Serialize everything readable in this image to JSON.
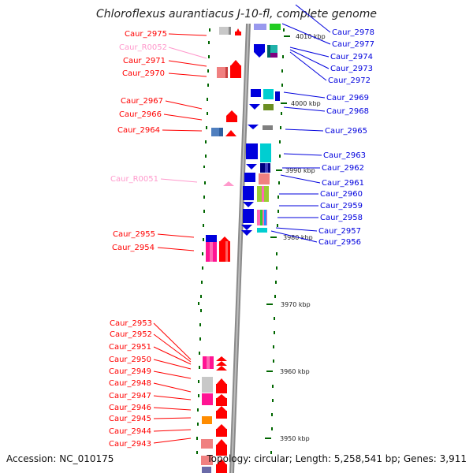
{
  "header": {
    "title": "Chloroflexus aurantiacus J-10-fl, complete genome"
  },
  "footer": {
    "accession": "Accession: NC_010175",
    "topology": "Topology: circular; Length: 5,258,541 bp; Genes: 3,911"
  },
  "ruler": {
    "unit": "kbp",
    "ticks": [
      {
        "label": "4010 kbp",
        "kbp": 4010
      },
      {
        "label": "4000 kbp",
        "kbp": 4000
      },
      {
        "label": "3990 kbp",
        "kbp": 3990
      },
      {
        "label": "3980 kbp",
        "kbp": 3980
      },
      {
        "label": "3970 kbp",
        "kbp": 3970
      },
      {
        "label": "3960 kbp",
        "kbp": 3960
      },
      {
        "label": "3950 kbp",
        "kbp": 3950
      }
    ]
  },
  "colors": {
    "forward_strand": "#ff0000",
    "reverse_strand": "#0000dd",
    "rna_gene": "#ff99cc",
    "backbone": "#888888",
    "tick": "#006600"
  },
  "left_genes": [
    {
      "name": "Caur_2975",
      "type": "protein"
    },
    {
      "name": "Caur_R0052",
      "type": "rna"
    },
    {
      "name": "Caur_2971",
      "type": "protein"
    },
    {
      "name": "Caur_2970",
      "type": "protein"
    },
    {
      "name": "Caur_2967",
      "type": "protein"
    },
    {
      "name": "Caur_2966",
      "type": "protein"
    },
    {
      "name": "Caur_2964",
      "type": "protein"
    },
    {
      "name": "Caur_R0051",
      "type": "rna"
    },
    {
      "name": "Caur_2955",
      "type": "protein"
    },
    {
      "name": "Caur_2954",
      "type": "protein"
    },
    {
      "name": "Caur_2953",
      "type": "protein"
    },
    {
      "name": "Caur_2952",
      "type": "protein"
    },
    {
      "name": "Caur_2951",
      "type": "protein"
    },
    {
      "name": "Caur_2950",
      "type": "protein"
    },
    {
      "name": "Caur_2949",
      "type": "protein"
    },
    {
      "name": "Caur_2948",
      "type": "protein"
    },
    {
      "name": "Caur_2947",
      "type": "protein"
    },
    {
      "name": "Caur_2946",
      "type": "protein"
    },
    {
      "name": "Caur_2945",
      "type": "protein"
    },
    {
      "name": "Caur_2944",
      "type": "protein"
    },
    {
      "name": "Caur_2943",
      "type": "protein"
    }
  ],
  "right_genes": [
    {
      "name": "Caur_2978"
    },
    {
      "name": "Caur_2977"
    },
    {
      "name": "Caur_2974"
    },
    {
      "name": "Caur_2973"
    },
    {
      "name": "Caur_2972"
    },
    {
      "name": "Caur_2969"
    },
    {
      "name": "Caur_2968"
    },
    {
      "name": "Caur_2965"
    },
    {
      "name": "Caur_2963"
    },
    {
      "name": "Caur_2962"
    },
    {
      "name": "Caur_2961"
    },
    {
      "name": "Caur_2960"
    },
    {
      "name": "Caur_2959"
    },
    {
      "name": "Caur_2958"
    },
    {
      "name": "Caur_2957"
    },
    {
      "name": "Caur_2956"
    }
  ]
}
